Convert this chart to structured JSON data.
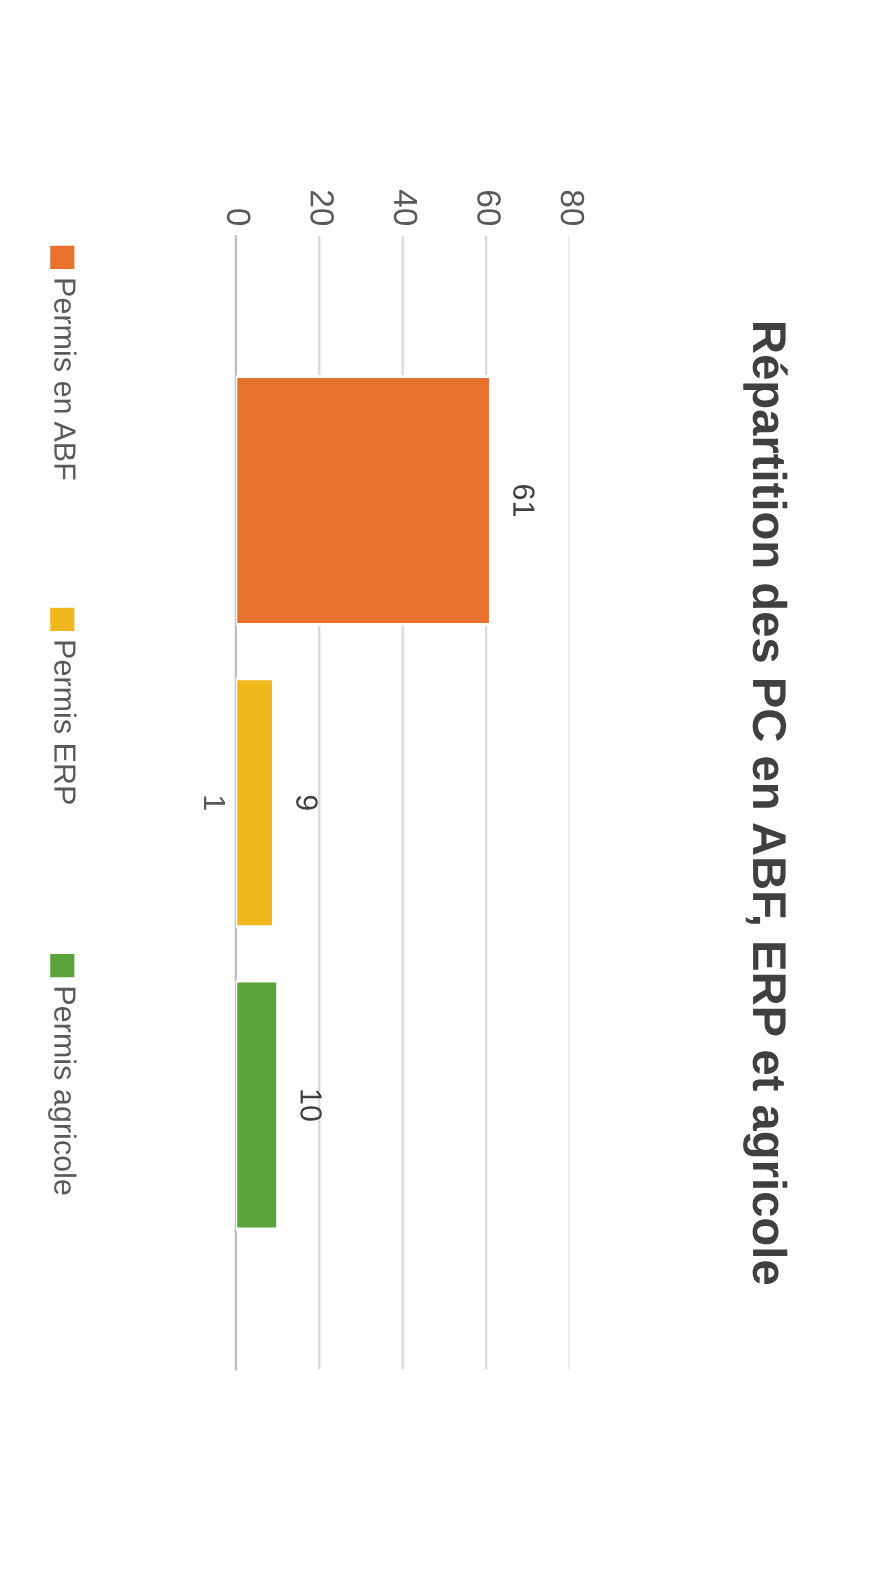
{
  "chart_data": {
    "type": "bar",
    "title": "Répartition des PC en ABF, ERP et agricole",
    "orientation": "horizontal",
    "categories": [
      "1"
    ],
    "series": [
      {
        "name": "Permis en ABF",
        "color": "#e8712e",
        "values": [
          61
        ]
      },
      {
        "name": "Permis ERP",
        "color": "#f0b81c",
        "values": [
          9
        ]
      },
      {
        "name": "Permis agricole",
        "color": "#5ba43c",
        "values": [
          10
        ]
      }
    ],
    "xlim": [
      0,
      80
    ],
    "xticks": [
      0,
      20,
      40,
      60,
      80
    ],
    "grid": "x",
    "legend": "left",
    "data_labels": true
  }
}
